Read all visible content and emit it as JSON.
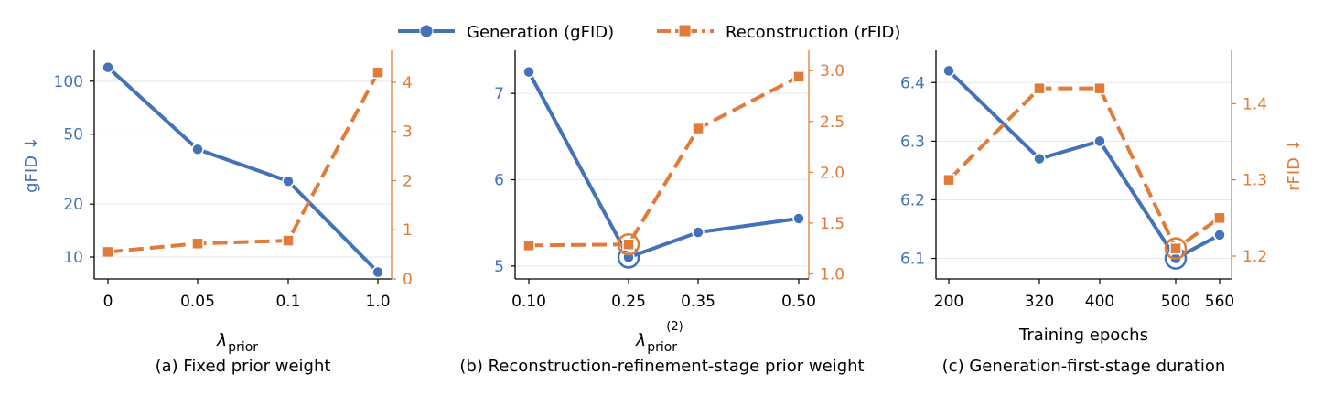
{
  "legend": {
    "entries": [
      {
        "label": "Generation (gFID)",
        "color": "#4472b8",
        "marker": "circle",
        "dash": "solid"
      },
      {
        "label": "Reconstruction (rFID)",
        "color": "#e07b39",
        "marker": "square",
        "dash": "dashed"
      }
    ],
    "placement": "top-center"
  },
  "colors": {
    "gen": "#4472b8",
    "rec": "#e07b39",
    "grid": "#e6e6e6",
    "axis": "#000000"
  },
  "chart_data": [
    {
      "type": "line",
      "caption": "(a) Fixed prior weight",
      "xlabel_main": "λ",
      "xlabel_sub": "prior",
      "xlabel_sup": "",
      "ylabel_left": "gFID ↓",
      "ylabel_right": "",
      "x_ticks": [
        "0",
        "0.05",
        "0.1",
        "1.0"
      ],
      "left_axis": {
        "scale": "log",
        "ylim": [
          7.5,
          150
        ],
        "ticks": [
          {
            "v": 10,
            "label": "10"
          },
          {
            "v": 20,
            "label": "20"
          },
          {
            "v": 50,
            "label": "50"
          },
          {
            "v": 100,
            "label": "100"
          }
        ]
      },
      "right_axis": {
        "scale": "linear",
        "ylim": [
          0,
          4.65
        ],
        "ticks": [
          {
            "v": 0,
            "label": "0"
          },
          {
            "v": 1,
            "label": "1"
          },
          {
            "v": 2,
            "label": "2"
          },
          {
            "v": 3,
            "label": "3"
          },
          {
            "v": 4,
            "label": "4"
          }
        ]
      },
      "series": [
        {
          "name": "Generation (gFID)",
          "axis": "left",
          "values": [
            120,
            41,
            27,
            8.2
          ]
        },
        {
          "name": "Reconstruction (rFID)",
          "axis": "right",
          "values": [
            0.55,
            0.72,
            0.78,
            4.2
          ]
        }
      ],
      "highlight": null
    },
    {
      "type": "line",
      "caption": "(b) Reconstruction-refinement-stage prior weight",
      "xlabel_main": "λ",
      "xlabel_sub": "prior",
      "xlabel_sup": "(2)",
      "ylabel_left": "",
      "ylabel_right": "",
      "x_ticks": [
        "0.10",
        "0.25",
        "0.35",
        "0.50"
      ],
      "left_axis": {
        "scale": "linear",
        "ylim": [
          4.85,
          7.5
        ],
        "ticks": [
          {
            "v": 5,
            "label": "5"
          },
          {
            "v": 6,
            "label": "6"
          },
          {
            "v": 7,
            "label": "7"
          }
        ]
      },
      "right_axis": {
        "scale": "linear",
        "ylim": [
          0.95,
          3.2
        ],
        "ticks": [
          {
            "v": 1.0,
            "label": "1.0"
          },
          {
            "v": 1.5,
            "label": "1.5"
          },
          {
            "v": 2.0,
            "label": "2.0"
          },
          {
            "v": 2.5,
            "label": "2.5"
          },
          {
            "v": 3.0,
            "label": "3.0"
          }
        ]
      },
      "series": [
        {
          "name": "Generation (gFID)",
          "axis": "left",
          "values": [
            7.25,
            5.1,
            5.39,
            5.55
          ]
        },
        {
          "name": "Reconstruction (rFID)",
          "axis": "right",
          "values": [
            1.28,
            1.29,
            2.43,
            2.94
          ]
        }
      ],
      "highlight": {
        "index": 1
      }
    },
    {
      "type": "line",
      "caption": "(c) Generation-first-stage duration",
      "xlabel_main": "Training epochs",
      "xlabel_sub": "",
      "xlabel_sup": "",
      "ylabel_left": "",
      "ylabel_right": "rFID ↓",
      "x_ticks": [
        "200",
        "320",
        "400",
        "500",
        "560"
      ],
      "x_values": [
        200,
        320,
        400,
        500,
        560
      ],
      "left_axis": {
        "scale": "linear",
        "ylim": [
          6.065,
          6.455
        ],
        "ticks": [
          {
            "v": 6.1,
            "label": "6.1"
          },
          {
            "v": 6.2,
            "label": "6.2"
          },
          {
            "v": 6.3,
            "label": "6.3"
          },
          {
            "v": 6.4,
            "label": "6.4"
          }
        ]
      },
      "right_axis": {
        "scale": "linear",
        "ylim": [
          1.17,
          1.47
        ],
        "ticks": [
          {
            "v": 1.2,
            "label": "1.2"
          },
          {
            "v": 1.3,
            "label": "1.3"
          },
          {
            "v": 1.4,
            "label": "1.4"
          }
        ]
      },
      "series": [
        {
          "name": "Generation (gFID)",
          "axis": "left",
          "values": [
            6.42,
            6.27,
            6.3,
            6.1,
            6.14
          ]
        },
        {
          "name": "Reconstruction (rFID)",
          "axis": "right",
          "values": [
            1.3,
            1.42,
            1.42,
            1.21,
            1.25
          ]
        }
      ],
      "highlight": {
        "index": 3
      }
    }
  ]
}
